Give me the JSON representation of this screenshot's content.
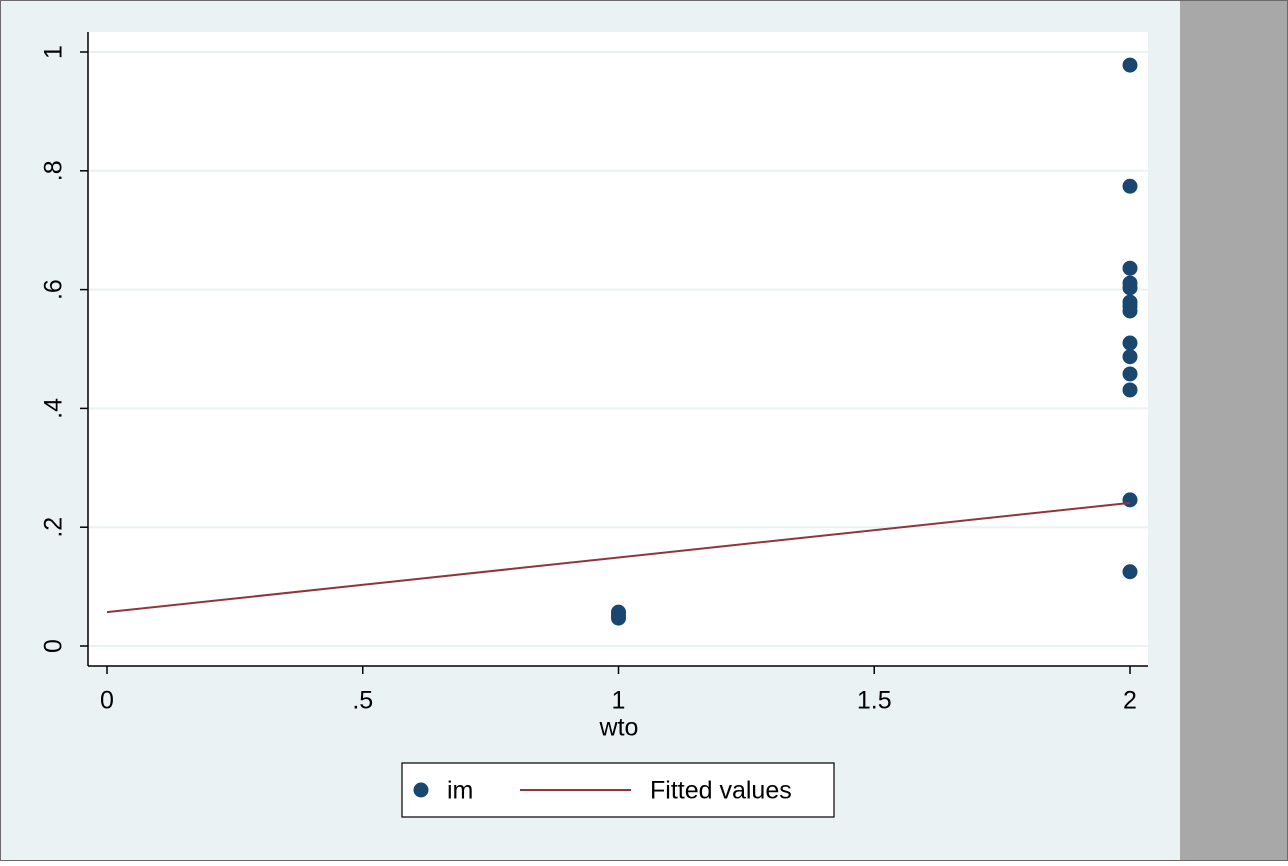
{
  "chart_data": {
    "type": "scatter",
    "x_label": "wto",
    "xlim": [
      0,
      2
    ],
    "ylim": [
      0,
      1
    ],
    "xticks": [
      0,
      {
        "value": 0.5,
        "label": ".5"
      },
      1,
      {
        "value": 1.5,
        "label": "1.5"
      },
      2
    ],
    "yticks": [
      0,
      {
        "value": 0.2,
        "label": ".2"
      },
      {
        "value": 0.4,
        "label": ".4"
      },
      {
        "value": 0.6,
        "label": ".6"
      },
      {
        "value": 0.8,
        "label": ".8"
      },
      1
    ],
    "grid": true,
    "legend": "bottom",
    "series": [
      {
        "name": "im",
        "type": "scatter",
        "color": "#1a476f",
        "x": [
          1,
          1,
          1,
          2,
          2,
          2,
          2,
          2,
          2,
          2,
          2,
          2,
          2,
          2,
          2,
          2,
          2
        ],
        "values": [
          0.057,
          0.052,
          0.047,
          0.978,
          0.774,
          0.636,
          0.611,
          0.603,
          0.579,
          0.572,
          0.564,
          0.51,
          0.487,
          0.458,
          0.431,
          0.246,
          0.125
        ]
      },
      {
        "name": "Fitted values",
        "type": "line",
        "color": "#90353b",
        "x": [
          0,
          2
        ],
        "values": [
          0.057,
          0.241
        ]
      }
    ]
  }
}
